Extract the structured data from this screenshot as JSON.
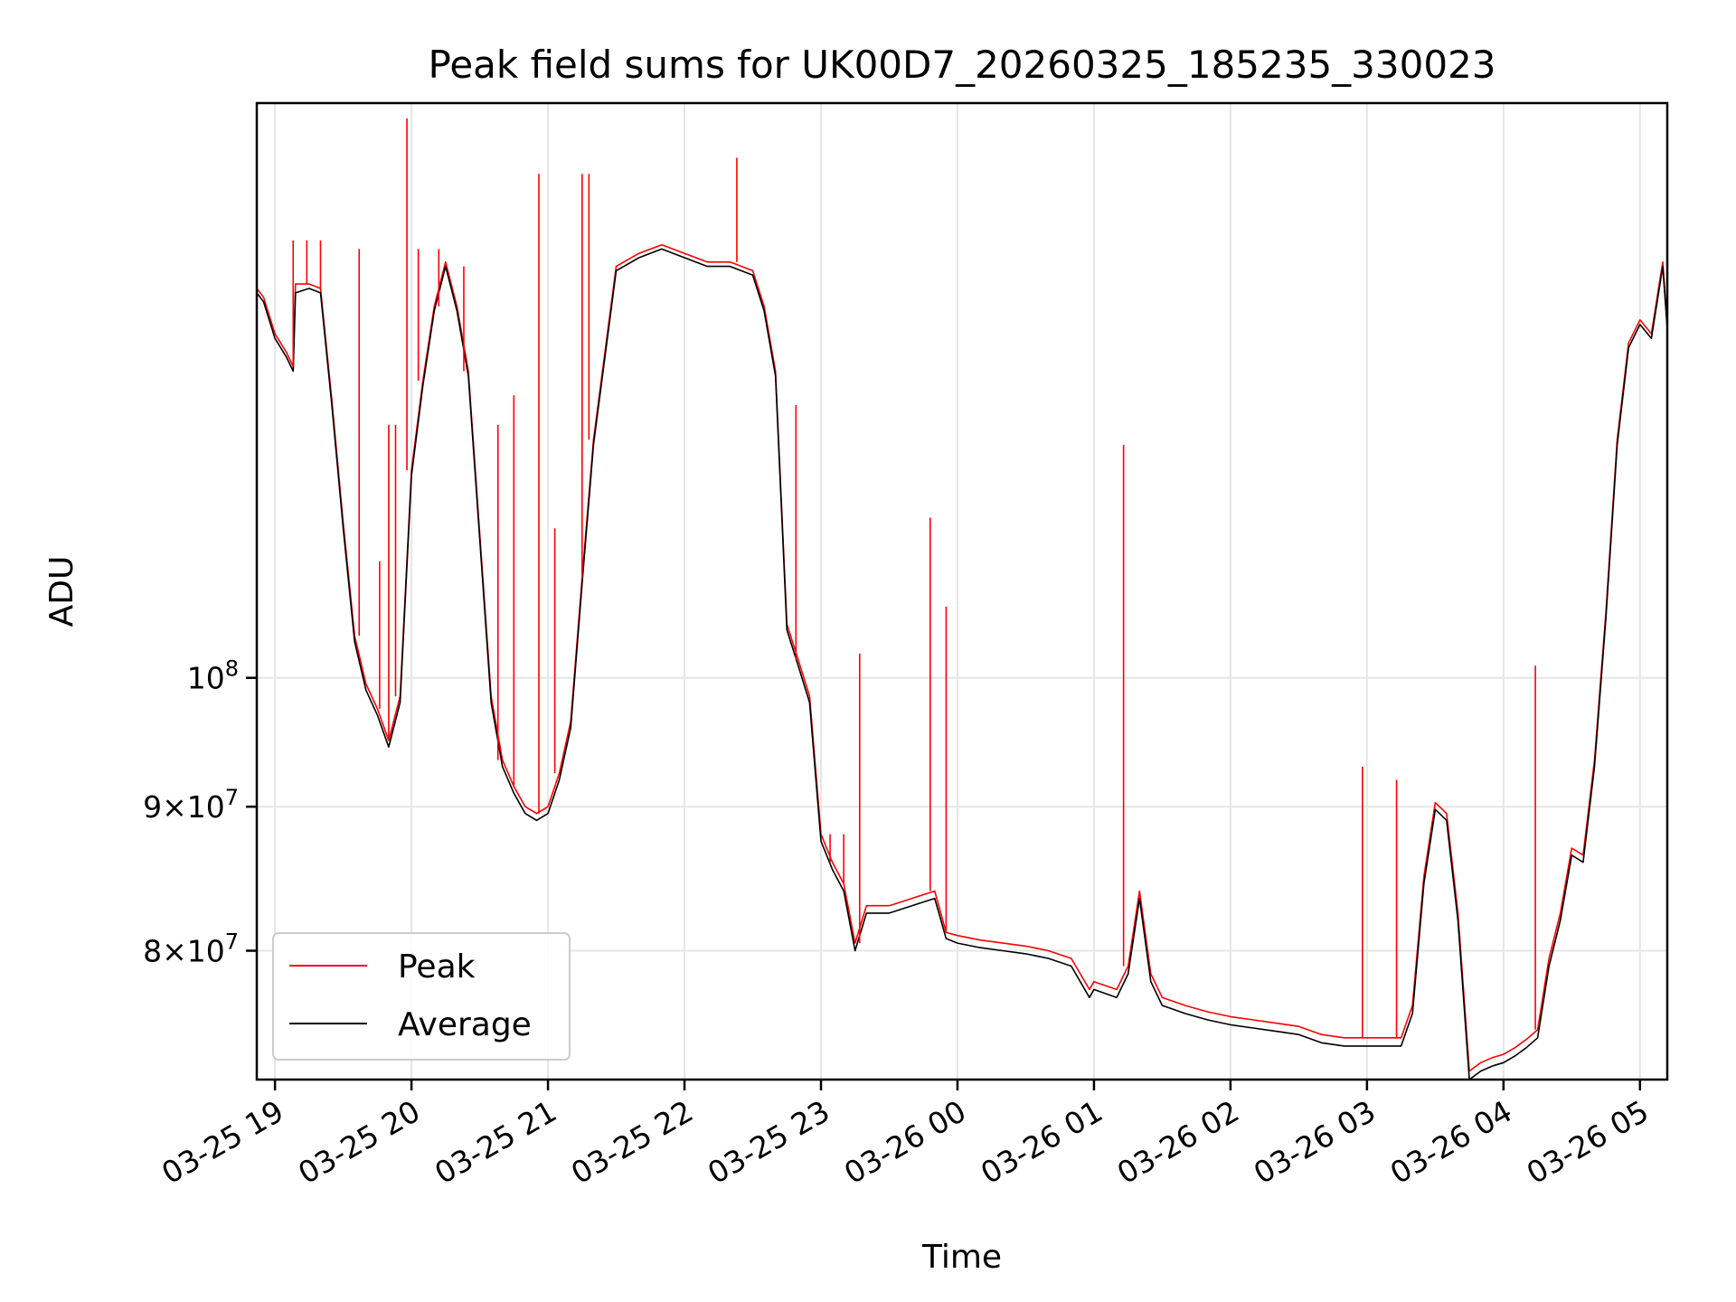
{
  "chart_data": {
    "type": "line",
    "title": "Peak field sums for UK00D7_20260325_185235_330023",
    "xlabel": "Time",
    "ylabel": "ADU",
    "x_ticks": [
      "03-25 19",
      "03-25 20",
      "03-25 21",
      "03-25 22",
      "03-25 23",
      "03-26 00",
      "03-26 01",
      "03-26 02",
      "03-26 03",
      "03-26 04",
      "03-26 05"
    ],
    "x_tick_times": [
      "2026-03-25 19:00",
      "2026-03-25 20:00",
      "2026-03-25 21:00",
      "2026-03-25 22:00",
      "2026-03-25 23:00",
      "2026-03-26 00:00",
      "2026-03-26 01:00",
      "2026-03-26 02:00",
      "2026-03-26 03:00",
      "2026-03-26 04:00",
      "2026-03-26 05:00"
    ],
    "y_scale": "log",
    "y_ticks": [
      {
        "value": 80000000,
        "mantissa": "8",
        "base": "10",
        "exp": "7"
      },
      {
        "value": 90000000,
        "mantissa": "9",
        "base": "10",
        "exp": "7"
      },
      {
        "value": 100000000,
        "mantissa": "",
        "base": "10",
        "exp": "8"
      }
    ],
    "xlim": [
      "2026-03-25 18:52",
      "2026-03-26 05:12"
    ],
    "ylim": [
      72000000,
      160000000
    ],
    "grid": true,
    "legend": {
      "position": "lower-left",
      "entries": [
        "Peak",
        "Average"
      ]
    },
    "colors": {
      "Peak": "#ff0000",
      "Average": "#000000"
    },
    "series": [
      {
        "name": "Average",
        "x": [
          "2026-03-25 18:52",
          "2026-03-25 18:55",
          "2026-03-25 19:00",
          "2026-03-25 19:05",
          "2026-03-25 19:08",
          "2026-03-25 19:09",
          "2026-03-25 19:15",
          "2026-03-25 19:20",
          "2026-03-25 19:25",
          "2026-03-25 19:30",
          "2026-03-25 19:35",
          "2026-03-25 19:40",
          "2026-03-25 19:45",
          "2026-03-25 19:50",
          "2026-03-25 19:55",
          "2026-03-25 20:00",
          "2026-03-25 20:05",
          "2026-03-25 20:10",
          "2026-03-25 20:15",
          "2026-03-25 20:20",
          "2026-03-25 20:25",
          "2026-03-25 20:30",
          "2026-03-25 20:35",
          "2026-03-25 20:40",
          "2026-03-25 20:45",
          "2026-03-25 20:50",
          "2026-03-25 20:55",
          "2026-03-25 21:00",
          "2026-03-25 21:05",
          "2026-03-25 21:10",
          "2026-03-25 21:15",
          "2026-03-25 21:20",
          "2026-03-25 21:30",
          "2026-03-25 21:40",
          "2026-03-25 21:50",
          "2026-03-25 22:00",
          "2026-03-25 22:10",
          "2026-03-25 22:20",
          "2026-03-25 22:30",
          "2026-03-25 22:35",
          "2026-03-25 22:40",
          "2026-03-25 22:45",
          "2026-03-25 22:50",
          "2026-03-25 22:55",
          "2026-03-25 23:00",
          "2026-03-25 23:05",
          "2026-03-25 23:10",
          "2026-03-25 23:15",
          "2026-03-25 23:20",
          "2026-03-25 23:30",
          "2026-03-25 23:40",
          "2026-03-25 23:50",
          "2026-03-25 23:55",
          "2026-03-26 00:00",
          "2026-03-26 00:10",
          "2026-03-26 00:20",
          "2026-03-26 00:30",
          "2026-03-26 00:40",
          "2026-03-26 00:50",
          "2026-03-26 00:58",
          "2026-03-26 01:00",
          "2026-03-26 01:10",
          "2026-03-26 01:15",
          "2026-03-26 01:20",
          "2026-03-26 01:25",
          "2026-03-26 01:30",
          "2026-03-26 01:40",
          "2026-03-26 01:50",
          "2026-03-26 02:00",
          "2026-03-26 02:10",
          "2026-03-26 02:20",
          "2026-03-26 02:30",
          "2026-03-26 02:40",
          "2026-03-26 02:50",
          "2026-03-26 03:00",
          "2026-03-26 03:10",
          "2026-03-26 03:15",
          "2026-03-26 03:20",
          "2026-03-26 03:25",
          "2026-03-26 03:30",
          "2026-03-26 03:35",
          "2026-03-26 03:40",
          "2026-03-26 03:45",
          "2026-03-26 03:50",
          "2026-03-26 03:55",
          "2026-03-26 04:00",
          "2026-03-26 04:05",
          "2026-03-26 04:10",
          "2026-03-26 04:15",
          "2026-03-26 04:20",
          "2026-03-26 04:25",
          "2026-03-26 04:30",
          "2026-03-26 04:35",
          "2026-03-26 04:40",
          "2026-03-26 04:45",
          "2026-03-26 04:50",
          "2026-03-26 04:55",
          "2026-03-26 05:00",
          "2026-03-26 05:05",
          "2026-03-26 05:10",
          "2026-03-26 05:12"
        ],
        "y": [
          137000000,
          136000000,
          132000000,
          130000000,
          128500000,
          137000000,
          137500000,
          137000000,
          125000000,
          113000000,
          103000000,
          99000000,
          97000000,
          94500000,
          98000000,
          118000000,
          127000000,
          135000000,
          140000000,
          135000000,
          128000000,
          112000000,
          98000000,
          93000000,
          91000000,
          89500000,
          89000000,
          89500000,
          92000000,
          96000000,
          108000000,
          121000000,
          139500000,
          141000000,
          142000000,
          141000000,
          140000000,
          140000000,
          139000000,
          135000000,
          128000000,
          104000000,
          101000000,
          98000000,
          87500000,
          85500000,
          84000000,
          80000000,
          82500000,
          82500000,
          83000000,
          83500000,
          80800000,
          80500000,
          80200000,
          80000000,
          79800000,
          79500000,
          79000000,
          77000000,
          77500000,
          77000000,
          78500000,
          83500000,
          78000000,
          76500000,
          76000000,
          75600000,
          75300000,
          75100000,
          74900000,
          74700000,
          74200000,
          74000000,
          74000000,
          74000000,
          74000000,
          76000000,
          84500000,
          89800000,
          89000000,
          82000000,
          72000000,
          72500000,
          72800000,
          73000000,
          73400000,
          73900000,
          74500000,
          79000000,
          82000000,
          86500000,
          86000000,
          93000000,
          105000000,
          121000000,
          131000000,
          133500000,
          132000000,
          140000000,
          133000000
        ]
      },
      {
        "name": "Peak",
        "x": [
          "2026-03-25 18:52",
          "2026-03-25 18:55",
          "2026-03-25 19:00",
          "2026-03-25 19:05",
          "2026-03-25 19:08",
          "2026-03-25 19:09",
          "2026-03-25 19:15",
          "2026-03-25 19:20",
          "2026-03-25 19:25",
          "2026-03-25 19:30",
          "2026-03-25 19:35",
          "2026-03-25 19:40",
          "2026-03-25 19:45",
          "2026-03-25 19:50",
          "2026-03-25 19:55",
          "2026-03-25 20:00",
          "2026-03-25 20:05",
          "2026-03-25 20:10",
          "2026-03-25 20:15",
          "2026-03-25 20:20",
          "2026-03-25 20:25",
          "2026-03-25 20:30",
          "2026-03-25 20:35",
          "2026-03-25 20:40",
          "2026-03-25 20:45",
          "2026-03-25 20:50",
          "2026-03-25 20:55",
          "2026-03-25 21:00",
          "2026-03-25 21:05",
          "2026-03-25 21:10",
          "2026-03-25 21:15",
          "2026-03-25 21:20",
          "2026-03-25 21:30",
          "2026-03-25 21:40",
          "2026-03-25 21:50",
          "2026-03-25 22:00",
          "2026-03-25 22:10",
          "2026-03-25 22:20",
          "2026-03-25 22:30",
          "2026-03-25 22:35",
          "2026-03-25 22:40",
          "2026-03-25 22:45",
          "2026-03-25 22:50",
          "2026-03-25 22:55",
          "2026-03-25 23:00",
          "2026-03-25 23:05",
          "2026-03-25 23:10",
          "2026-03-25 23:15",
          "2026-03-25 23:20",
          "2026-03-25 23:30",
          "2026-03-25 23:40",
          "2026-03-25 23:50",
          "2026-03-25 23:55",
          "2026-03-26 00:00",
          "2026-03-26 00:10",
          "2026-03-26 00:20",
          "2026-03-26 00:30",
          "2026-03-26 00:40",
          "2026-03-26 00:50",
          "2026-03-26 00:58",
          "2026-03-26 01:00",
          "2026-03-26 01:10",
          "2026-03-26 01:15",
          "2026-03-26 01:20",
          "2026-03-26 01:25",
          "2026-03-26 01:30",
          "2026-03-26 01:40",
          "2026-03-26 01:50",
          "2026-03-26 02:00",
          "2026-03-26 02:10",
          "2026-03-26 02:20",
          "2026-03-26 02:30",
          "2026-03-26 02:40",
          "2026-03-26 02:50",
          "2026-03-26 03:00",
          "2026-03-26 03:10",
          "2026-03-26 03:15",
          "2026-03-26 03:20",
          "2026-03-26 03:25",
          "2026-03-26 03:30",
          "2026-03-26 03:35",
          "2026-03-26 03:40",
          "2026-03-26 03:45",
          "2026-03-26 03:50",
          "2026-03-26 03:55",
          "2026-03-26 04:00",
          "2026-03-26 04:05",
          "2026-03-26 04:10",
          "2026-03-26 04:15",
          "2026-03-26 04:20",
          "2026-03-26 04:25",
          "2026-03-26 04:30",
          "2026-03-26 04:35",
          "2026-03-26 04:40",
          "2026-03-26 04:45",
          "2026-03-26 04:50",
          "2026-03-26 04:55",
          "2026-03-26 05:00",
          "2026-03-26 05:05",
          "2026-03-26 05:10",
          "2026-03-26 05:12"
        ],
        "y": [
          137500000,
          136500000,
          132500000,
          130500000,
          129000000,
          138000000,
          138000000,
          137500000,
          125500000,
          113500000,
          103500000,
          99500000,
          97500000,
          95000000,
          98500000,
          118500000,
          127500000,
          135500000,
          140500000,
          135500000,
          128500000,
          112500000,
          98500000,
          93500000,
          91500000,
          90000000,
          89500000,
          90000000,
          92500000,
          96500000,
          108500000,
          121500000,
          140000000,
          141500000,
          142500000,
          141500000,
          140500000,
          140500000,
          139500000,
          135500000,
          128500000,
          104500000,
          101500000,
          98500000,
          88000000,
          86000000,
          84500000,
          80500000,
          83000000,
          83000000,
          83500000,
          84000000,
          81200000,
          81000000,
          80700000,
          80500000,
          80300000,
          80000000,
          79500000,
          77500000,
          78000000,
          77500000,
          79000000,
          84000000,
          78500000,
          77000000,
          76500000,
          76100000,
          75800000,
          75600000,
          75400000,
          75200000,
          74700000,
          74500000,
          74500000,
          74500000,
          74500000,
          76500000,
          85000000,
          90300000,
          89500000,
          82500000,
          72500000,
          73000000,
          73300000,
          73500000,
          73900000,
          74400000,
          75000000,
          79500000,
          82500000,
          87000000,
          86500000,
          93500000,
          105500000,
          121500000,
          131500000,
          134000000,
          132500000,
          140500000,
          133500000
        ]
      },
      {
        "name": "Peak",
        "spikes": true,
        "x": [
          "2026-03-25 19:08",
          "2026-03-25 19:14",
          "2026-03-25 19:20",
          "2026-03-25 19:37",
          "2026-03-25 19:46",
          "2026-03-25 19:50",
          "2026-03-25 19:53",
          "2026-03-25 19:58",
          "2026-03-25 20:03",
          "2026-03-25 20:12",
          "2026-03-25 20:23",
          "2026-03-25 20:38",
          "2026-03-25 20:45",
          "2026-03-25 20:56",
          "2026-03-25 21:03",
          "2026-03-25 21:15",
          "2026-03-25 21:18",
          "2026-03-25 22:23",
          "2026-03-25 22:49",
          "2026-03-25 23:04",
          "2026-03-25 23:10",
          "2026-03-25 23:17",
          "2026-03-25 23:48",
          "2026-03-25 23:55",
          "2026-03-26 01:13",
          "2026-03-26 02:58",
          "2026-03-26 03:13",
          "2026-03-26 04:14"
        ],
        "y": [
          143000000,
          143000000,
          143000000,
          142000000,
          110000000,
          123000000,
          123000000,
          158000000,
          142000000,
          142000000,
          140000000,
          123000000,
          126000000,
          151000000,
          113000000,
          151000000,
          151000000,
          153000000,
          125000000,
          88000000,
          88000000,
          102000000,
          114000000,
          106000000,
          121000000,
          93000000,
          92000000,
          101000000
        ]
      }
    ]
  }
}
